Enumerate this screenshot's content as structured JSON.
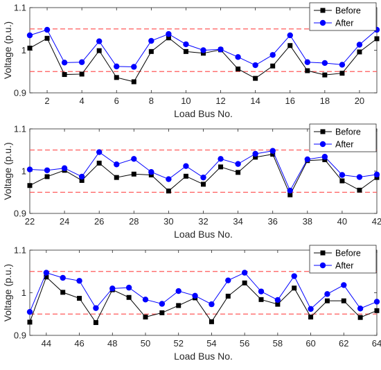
{
  "colors": {
    "before": "#000000",
    "after": "#0000ff",
    "limit": "#ff5a5a",
    "axis": "#262626"
  },
  "limits": [
    0.95,
    1.05
  ],
  "chart_data": [
    {
      "type": "line",
      "xlabel": "Load Bus No.",
      "ylabel": "Voltage (p.u.)",
      "xlim": [
        1,
        21
      ],
      "ylim": [
        0.9,
        1.1
      ],
      "xticks": [
        2,
        4,
        6,
        8,
        10,
        12,
        14,
        16,
        18,
        20
      ],
      "xtick_labels": [
        "2",
        "4",
        "6",
        "8",
        "10",
        "12",
        "14",
        "16",
        "18",
        "20"
      ],
      "yticks": [
        0.9,
        1,
        1.1
      ],
      "ytick_labels": [
        "0.9",
        "1",
        "1.1"
      ],
      "legend": "top-right",
      "x": [
        1,
        2,
        3,
        4,
        5,
        6,
        7,
        8,
        9,
        10,
        11,
        12,
        13,
        14,
        15,
        16,
        17,
        18,
        19,
        20,
        21
      ],
      "series": [
        {
          "name": "Before",
          "values": [
            1.005,
            1.028,
            0.943,
            0.944,
            0.999,
            0.936,
            0.926,
            0.997,
            1.029,
            0.997,
            0.993,
            1.001,
            0.956,
            0.934,
            0.963,
            1.011,
            0.952,
            0.942,
            0.946,
            0.996,
            1.027
          ]
        },
        {
          "name": "After",
          "values": [
            1.035,
            1.048,
            0.971,
            0.972,
            1.021,
            0.962,
            0.961,
            1.022,
            1.038,
            1.014,
            1.0,
            1.002,
            0.984,
            0.965,
            0.989,
            1.035,
            0.972,
            0.97,
            0.966,
            1.013,
            1.048
          ]
        }
      ]
    },
    {
      "type": "line",
      "xlabel": "Load Bus No.",
      "ylabel": "Voltage (p.u.)",
      "xlim": [
        22,
        42
      ],
      "ylim": [
        0.9,
        1.1
      ],
      "xticks": [
        22,
        24,
        26,
        28,
        30,
        32,
        34,
        36,
        38,
        40,
        42
      ],
      "xtick_labels": [
        "22",
        "24",
        "26",
        "28",
        "30",
        "32",
        "34",
        "36",
        "38",
        "40",
        "42"
      ],
      "yticks": [
        0.9,
        1,
        1.1
      ],
      "ytick_labels": [
        "0.9",
        "1",
        "1.1"
      ],
      "legend": "top-right",
      "x": [
        22,
        23,
        24,
        25,
        26,
        27,
        28,
        29,
        30,
        31,
        32,
        33,
        34,
        35,
        36,
        37,
        38,
        39,
        40,
        41,
        42
      ],
      "series": [
        {
          "name": "Before",
          "values": [
            0.966,
            0.987,
            1.002,
            0.978,
            1.019,
            0.985,
            0.993,
            0.991,
            0.953,
            0.988,
            0.969,
            1.01,
            0.997,
            1.033,
            1.04,
            0.944,
            1.025,
            1.027,
            0.977,
            0.955,
            0.985
          ]
        },
        {
          "name": "After",
          "values": [
            1.004,
            1.002,
            1.007,
            0.987,
            1.045,
            1.016,
            1.029,
            0.998,
            0.981,
            1.012,
            0.985,
            1.029,
            1.017,
            1.041,
            1.048,
            0.954,
            1.028,
            1.034,
            0.991,
            0.986,
            0.992
          ]
        }
      ]
    },
    {
      "type": "line",
      "xlabel": "Load Bus No.",
      "ylabel": "Voltage (p.u.)",
      "xlim": [
        43,
        64
      ],
      "ylim": [
        0.9,
        1.1
      ],
      "xticks": [
        44,
        46,
        48,
        50,
        52,
        54,
        56,
        58,
        60,
        62,
        64
      ],
      "xtick_labels": [
        "44",
        "46",
        "48",
        "50",
        "52",
        "54",
        "56",
        "58",
        "60",
        "62",
        "64"
      ],
      "yticks": [
        0.9,
        1,
        1.1
      ],
      "ytick_labels": [
        "0.9",
        "1",
        "1.1"
      ],
      "legend": "top-right",
      "x": [
        43,
        44,
        45,
        46,
        47,
        48,
        49,
        50,
        51,
        52,
        53,
        54,
        55,
        56,
        57,
        58,
        59,
        60,
        61,
        62,
        63,
        64
      ],
      "series": [
        {
          "name": "Before",
          "values": [
            0.931,
            1.037,
            1.001,
            0.987,
            0.93,
            1.007,
            0.989,
            0.943,
            0.953,
            0.97,
            0.988,
            0.932,
            0.992,
            1.023,
            0.984,
            0.973,
            1.011,
            0.943,
            0.981,
            0.981,
            0.942,
            0.958
          ]
        },
        {
          "name": "After",
          "values": [
            0.955,
            1.047,
            1.035,
            1.028,
            0.964,
            1.01,
            1.012,
            0.984,
            0.974,
            1.004,
            0.993,
            0.973,
            1.029,
            1.047,
            1.003,
            0.983,
            1.039,
            0.962,
            0.997,
            1.018,
            0.963,
            0.979
          ]
        }
      ]
    }
  ]
}
